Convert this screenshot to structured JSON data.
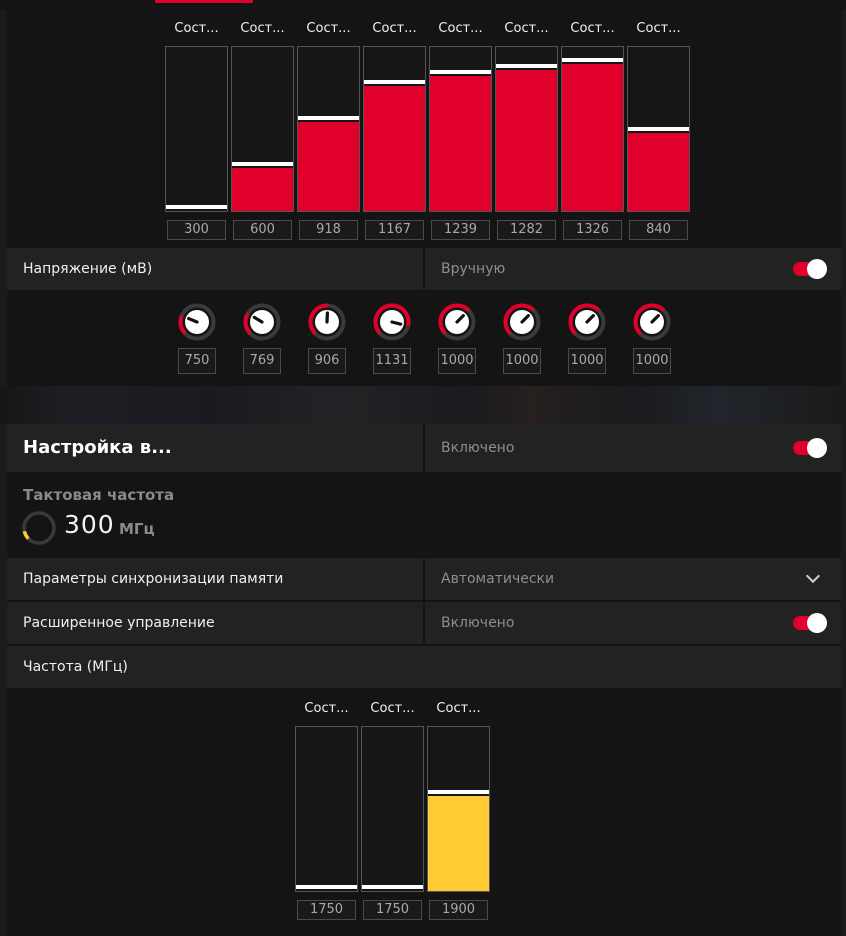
{
  "colors": {
    "accent": "#e0002b",
    "memory": "#ffcc33",
    "panel": "#141414",
    "row": "#222222"
  },
  "gpu_states": {
    "range": [
      300,
      1400
    ],
    "items": [
      {
        "label": "Сост...",
        "value": 300
      },
      {
        "label": "Сост...",
        "value": 600
      },
      {
        "label": "Сост...",
        "value": 918
      },
      {
        "label": "Сост...",
        "value": 1167
      },
      {
        "label": "Сост...",
        "value": 1239
      },
      {
        "label": "Сост...",
        "value": 1282
      },
      {
        "label": "Сост...",
        "value": 1326
      },
      {
        "label": "Сост...",
        "value": 840
      }
    ]
  },
  "voltage": {
    "label": "Напряжение (мВ)",
    "mode": "Вручную",
    "toggle_on": true,
    "range": [
      600,
      1200
    ],
    "knobs": [
      750,
      769,
      906,
      1131,
      1000,
      1000,
      1000,
      1000
    ]
  },
  "memory_tuning": {
    "title": "Настройка в...",
    "status": "Включено",
    "toggle_on": true
  },
  "clock": {
    "title": "Тактовая частота",
    "value": "300",
    "unit": "МГц",
    "fraction": 0.12
  },
  "memory_timing": {
    "label": "Параметры синхронизации памяти",
    "value": "Автоматически",
    "icon": "chevron-down-icon"
  },
  "advanced": {
    "label": "Расширенное управление",
    "status": "Включено",
    "toggle_on": true
  },
  "frequency": {
    "label": "Частота (МГц)"
  },
  "mem_states": {
    "range": [
      1750,
      2000
    ],
    "items": [
      {
        "label": "Сост...",
        "value": 1750
      },
      {
        "label": "Сост...",
        "value": 1750
      },
      {
        "label": "Сост...",
        "value": 1900
      }
    ]
  }
}
